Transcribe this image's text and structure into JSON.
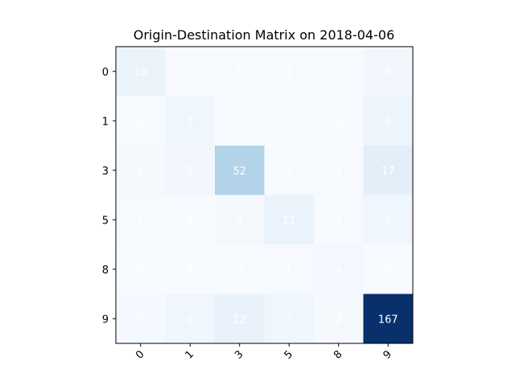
{
  "chart_data": {
    "type": "heatmap",
    "title": "Origin-Destination Matrix on 2018-04-06",
    "xlabel": "",
    "ylabel": "",
    "x_categories": [
      "0",
      "1",
      "3",
      "5",
      "8",
      "9"
    ],
    "y_categories": [
      "0",
      "1",
      "3",
      "5",
      "8",
      "9"
    ],
    "values": [
      [
        10,
        0,
        1,
        1,
        0,
        5
      ],
      [
        0,
        7,
        0,
        0,
        0,
        8
      ],
      [
        2,
        5,
        52,
        1,
        1,
        17
      ],
      [
        1,
        0,
        2,
        11,
        1,
        6
      ],
      [
        0,
        0,
        0,
        1,
        4,
        0
      ],
      [
        3,
        6,
        12,
        7,
        2,
        167
      ]
    ],
    "colormap": "Blues",
    "color_low": "#f7fbff",
    "color_high": "#08306b",
    "x_tick_rotation_deg": 45,
    "grid": false,
    "legend": "none"
  }
}
